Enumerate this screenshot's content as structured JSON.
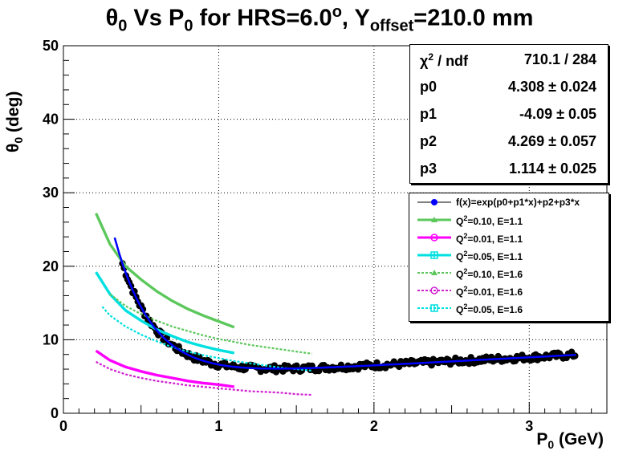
{
  "chart_data": {
    "type": "scatter",
    "title": "θ0 Vs P0 for HRS=6.0o, Yoffset=210.0 mm",
    "title_parts": {
      "a": "θ",
      "a_sub": "0",
      "b": " Vs P",
      "b_sub": "0",
      "c": " for HRS=6.0",
      "c_sup": "o",
      "d": ", Y",
      "d_sub": "offset",
      "e": "=210.0 mm"
    },
    "xlabel": "P0 (GeV)",
    "xlabel_parts": {
      "a": "P",
      "sub": "0",
      "b": " (GeV)"
    },
    "ylabel": "θ0 (deg)",
    "ylabel_parts": {
      "a": "θ",
      "sub": "0",
      "b": " (deg)"
    },
    "xlim": [
      0,
      3.5
    ],
    "ylim": [
      0,
      50
    ],
    "grid": true,
    "x_ticks": [
      "0",
      "1",
      "2",
      "3"
    ],
    "y_ticks": [
      "0",
      "10",
      "20",
      "30",
      "40",
      "50"
    ],
    "fit_function": "f(x)=exp(p0+p1*x)+p2+p3*x",
    "fit_params": {
      "p0": 4.308,
      "p1": -4.09,
      "p2": 4.269,
      "p3": 1.114
    },
    "fit_range": [
      0.33,
      3.3
    ],
    "data_points": {
      "x_range": [
        0.38,
        3.3
      ],
      "name": "f(x)=exp(p0+p1*x)+p2+p3*x",
      "color": "#000000"
    },
    "series": [
      {
        "name": "Q2=0.10, E=1.1",
        "x": [
          0.21,
          0.3,
          0.4,
          0.5,
          0.6,
          0.7,
          0.8,
          0.9,
          1.0,
          1.1
        ],
        "values": [
          27.2,
          23.0,
          20.0,
          18.2,
          16.6,
          15.3,
          14.2,
          13.3,
          12.5,
          11.7
        ],
        "color": "#5cc85c",
        "style": "solid"
      },
      {
        "name": "Q2=0.01, E=1.1",
        "x": [
          0.21,
          0.3,
          0.4,
          0.5,
          0.6,
          0.7,
          0.8,
          0.9,
          1.0,
          1.1
        ],
        "values": [
          8.5,
          7.2,
          6.3,
          5.7,
          5.2,
          4.8,
          4.4,
          4.1,
          3.9,
          3.6
        ],
        "color": "#ff00ff",
        "style": "solid"
      },
      {
        "name": "Q2=0.05, E=1.1",
        "x": [
          0.21,
          0.3,
          0.4,
          0.5,
          0.6,
          0.7,
          0.8,
          0.9,
          1.0,
          1.1
        ],
        "values": [
          19.2,
          16.2,
          14.0,
          12.6,
          11.4,
          10.5,
          9.7,
          9.1,
          8.6,
          8.2
        ],
        "color": "#00e0e0",
        "style": "solid"
      },
      {
        "name": "Q2=0.10, E=1.6",
        "x": [
          0.3,
          0.4,
          0.5,
          0.6,
          0.7,
          0.8,
          0.9,
          1.0,
          1.1,
          1.2,
          1.3,
          1.4,
          1.5,
          1.6
        ],
        "values": [
          16.2,
          14.6,
          13.5,
          12.6,
          11.8,
          11.2,
          10.6,
          10.1,
          9.7,
          9.3,
          9.0,
          8.7,
          8.4,
          8.1
        ],
        "color": "#5cc85c",
        "style": "dashed"
      },
      {
        "name": "Q2=0.01, E=1.6",
        "x": [
          0.21,
          0.3,
          0.4,
          0.5,
          0.6,
          0.7,
          0.8,
          0.9,
          1.0,
          1.1,
          1.2,
          1.3,
          1.4,
          1.5,
          1.6
        ],
        "values": [
          7.0,
          6.0,
          5.3,
          4.8,
          4.4,
          4.1,
          3.8,
          3.6,
          3.4,
          3.2,
          3.0,
          2.9,
          2.8,
          2.6,
          2.5
        ],
        "color": "#d020d0",
        "style": "dashed"
      },
      {
        "name": "Q2=0.05, E=1.6",
        "x": [
          0.25,
          0.3,
          0.4,
          0.5,
          0.6,
          0.7,
          0.8,
          0.9,
          1.0,
          1.1,
          1.2,
          1.3,
          1.4,
          1.5,
          1.6
        ],
        "values": [
          14.5,
          13.3,
          11.8,
          10.7,
          9.8,
          9.0,
          8.4,
          7.9,
          7.5,
          7.1,
          6.8,
          6.5,
          6.2,
          6.0,
          5.8
        ],
        "color": "#00e0e0",
        "style": "dashed"
      }
    ],
    "legend_position": "right"
  },
  "stats_box": {
    "chi2_label": "χ2 / ndf",
    "chi2_parts": {
      "a": "χ",
      "sup": "2",
      "b": " / ndf"
    },
    "chi2_value": "710.1 / 284",
    "rows": [
      {
        "name": "p0",
        "value": "4.308 ± 0.024"
      },
      {
        "name": "p1",
        "value": "-4.09 ± 0.05"
      },
      {
        "name": "p2",
        "value": "4.269 ± 0.057"
      },
      {
        "name": "p3",
        "value": "1.114 ± 0.025"
      }
    ]
  },
  "legend": [
    {
      "label": "f(x)=exp(p0+p1*x)+p2+p3*x",
      "color": "#0000ff",
      "marker": "circle-filled",
      "style": "solid"
    },
    {
      "label": "Q2=0.10, E=1.1",
      "parts": {
        "a": "Q",
        "sup": "2",
        "b": "=0.10, E=1.1"
      },
      "color": "#5cc85c",
      "marker": "triangle",
      "style": "solid"
    },
    {
      "label": "Q2=0.01, E=1.1",
      "parts": {
        "a": "Q",
        "sup": "2",
        "b": "=0.01, E=1.1"
      },
      "color": "#ff00ff",
      "marker": "circle-open",
      "style": "solid"
    },
    {
      "label": "Q2=0.05, E=1.1",
      "parts": {
        "a": "Q",
        "sup": "2",
        "b": "=0.05, E=1.1"
      },
      "color": "#00e0e0",
      "marker": "square-cross",
      "style": "solid"
    },
    {
      "label": "Q2=0.10, E=1.6",
      "parts": {
        "a": "Q",
        "sup": "2",
        "b": "=0.10, E=1.6"
      },
      "color": "#5cc85c",
      "marker": "triangle",
      "style": "dashed"
    },
    {
      "label": "Q2=0.01, E=1.6",
      "parts": {
        "a": "Q",
        "sup": "2",
        "b": "=0.01, E=1.6"
      },
      "color": "#d020d0",
      "marker": "circle-open",
      "style": "dashed"
    },
    {
      "label": "Q2=0.05, E=1.6",
      "parts": {
        "a": "Q",
        "sup": "2",
        "b": "=0.05, E=1.6"
      },
      "color": "#00e0e0",
      "marker": "square-cross",
      "style": "dashed"
    }
  ]
}
